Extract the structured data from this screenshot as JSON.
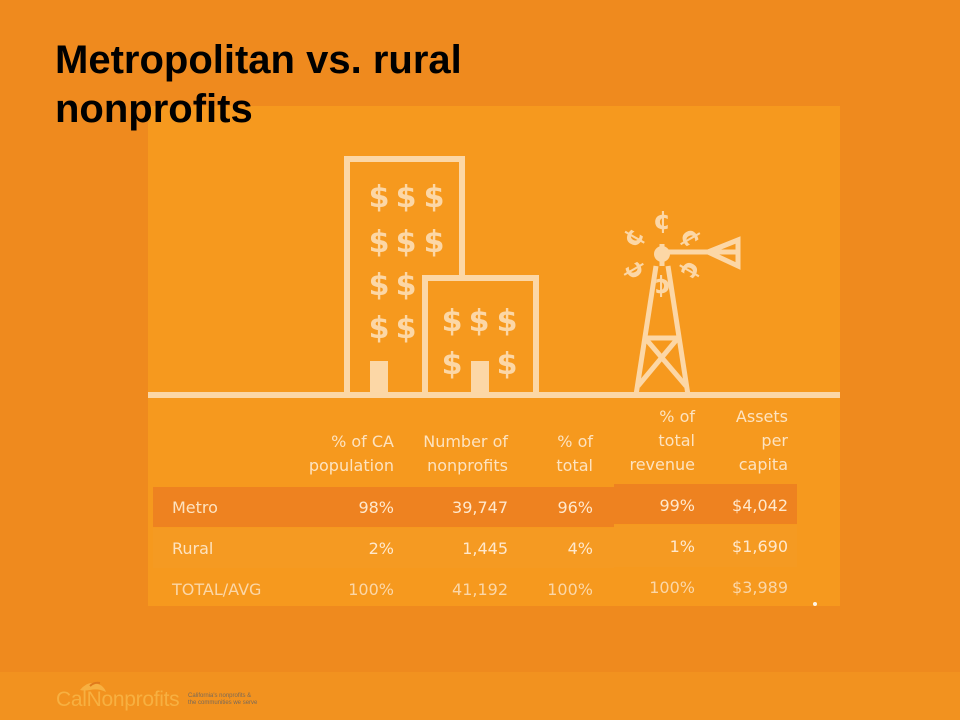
{
  "slide": {
    "title": "Metropolitan vs. rural nonprofits"
  },
  "colors": {
    "background": "#ef8a1e",
    "panel": "#f6991e",
    "illustration": "#fcd7a6",
    "metro_band": "#ee8220",
    "rural_band": "#f59a22",
    "text": "#000000"
  },
  "table": {
    "headers": [
      "% of CA\npopulation",
      "Number of\nnonprofits",
      "% of\ntotal",
      "% of\ntotal\nrevenue",
      "Assets\nper\ncapita"
    ],
    "rows": [
      {
        "label": "Metro",
        "values": [
          "98%",
          "39,747",
          "96%",
          "99%",
          "$4,042"
        ]
      },
      {
        "label": "Rural",
        "values": [
          "2%",
          "1,445",
          "4%",
          "1%",
          "$1,690"
        ]
      },
      {
        "label": "TOTAL/AVG",
        "values": [
          "100%",
          "41,192",
          "100%",
          "100%",
          "$3,989"
        ]
      }
    ]
  },
  "illustration": {
    "icons": [
      "tall-building-icon",
      "short-building-icon",
      "windmill-icon"
    ],
    "glyphs": {
      "dollar": "$",
      "cent": "¢"
    }
  },
  "footer": {
    "logo_text_part1": "Cal",
    "logo_text_part2": "Nonprofits",
    "tagline_line1": "California's nonprofits &",
    "tagline_line2": "the communities we serve"
  }
}
